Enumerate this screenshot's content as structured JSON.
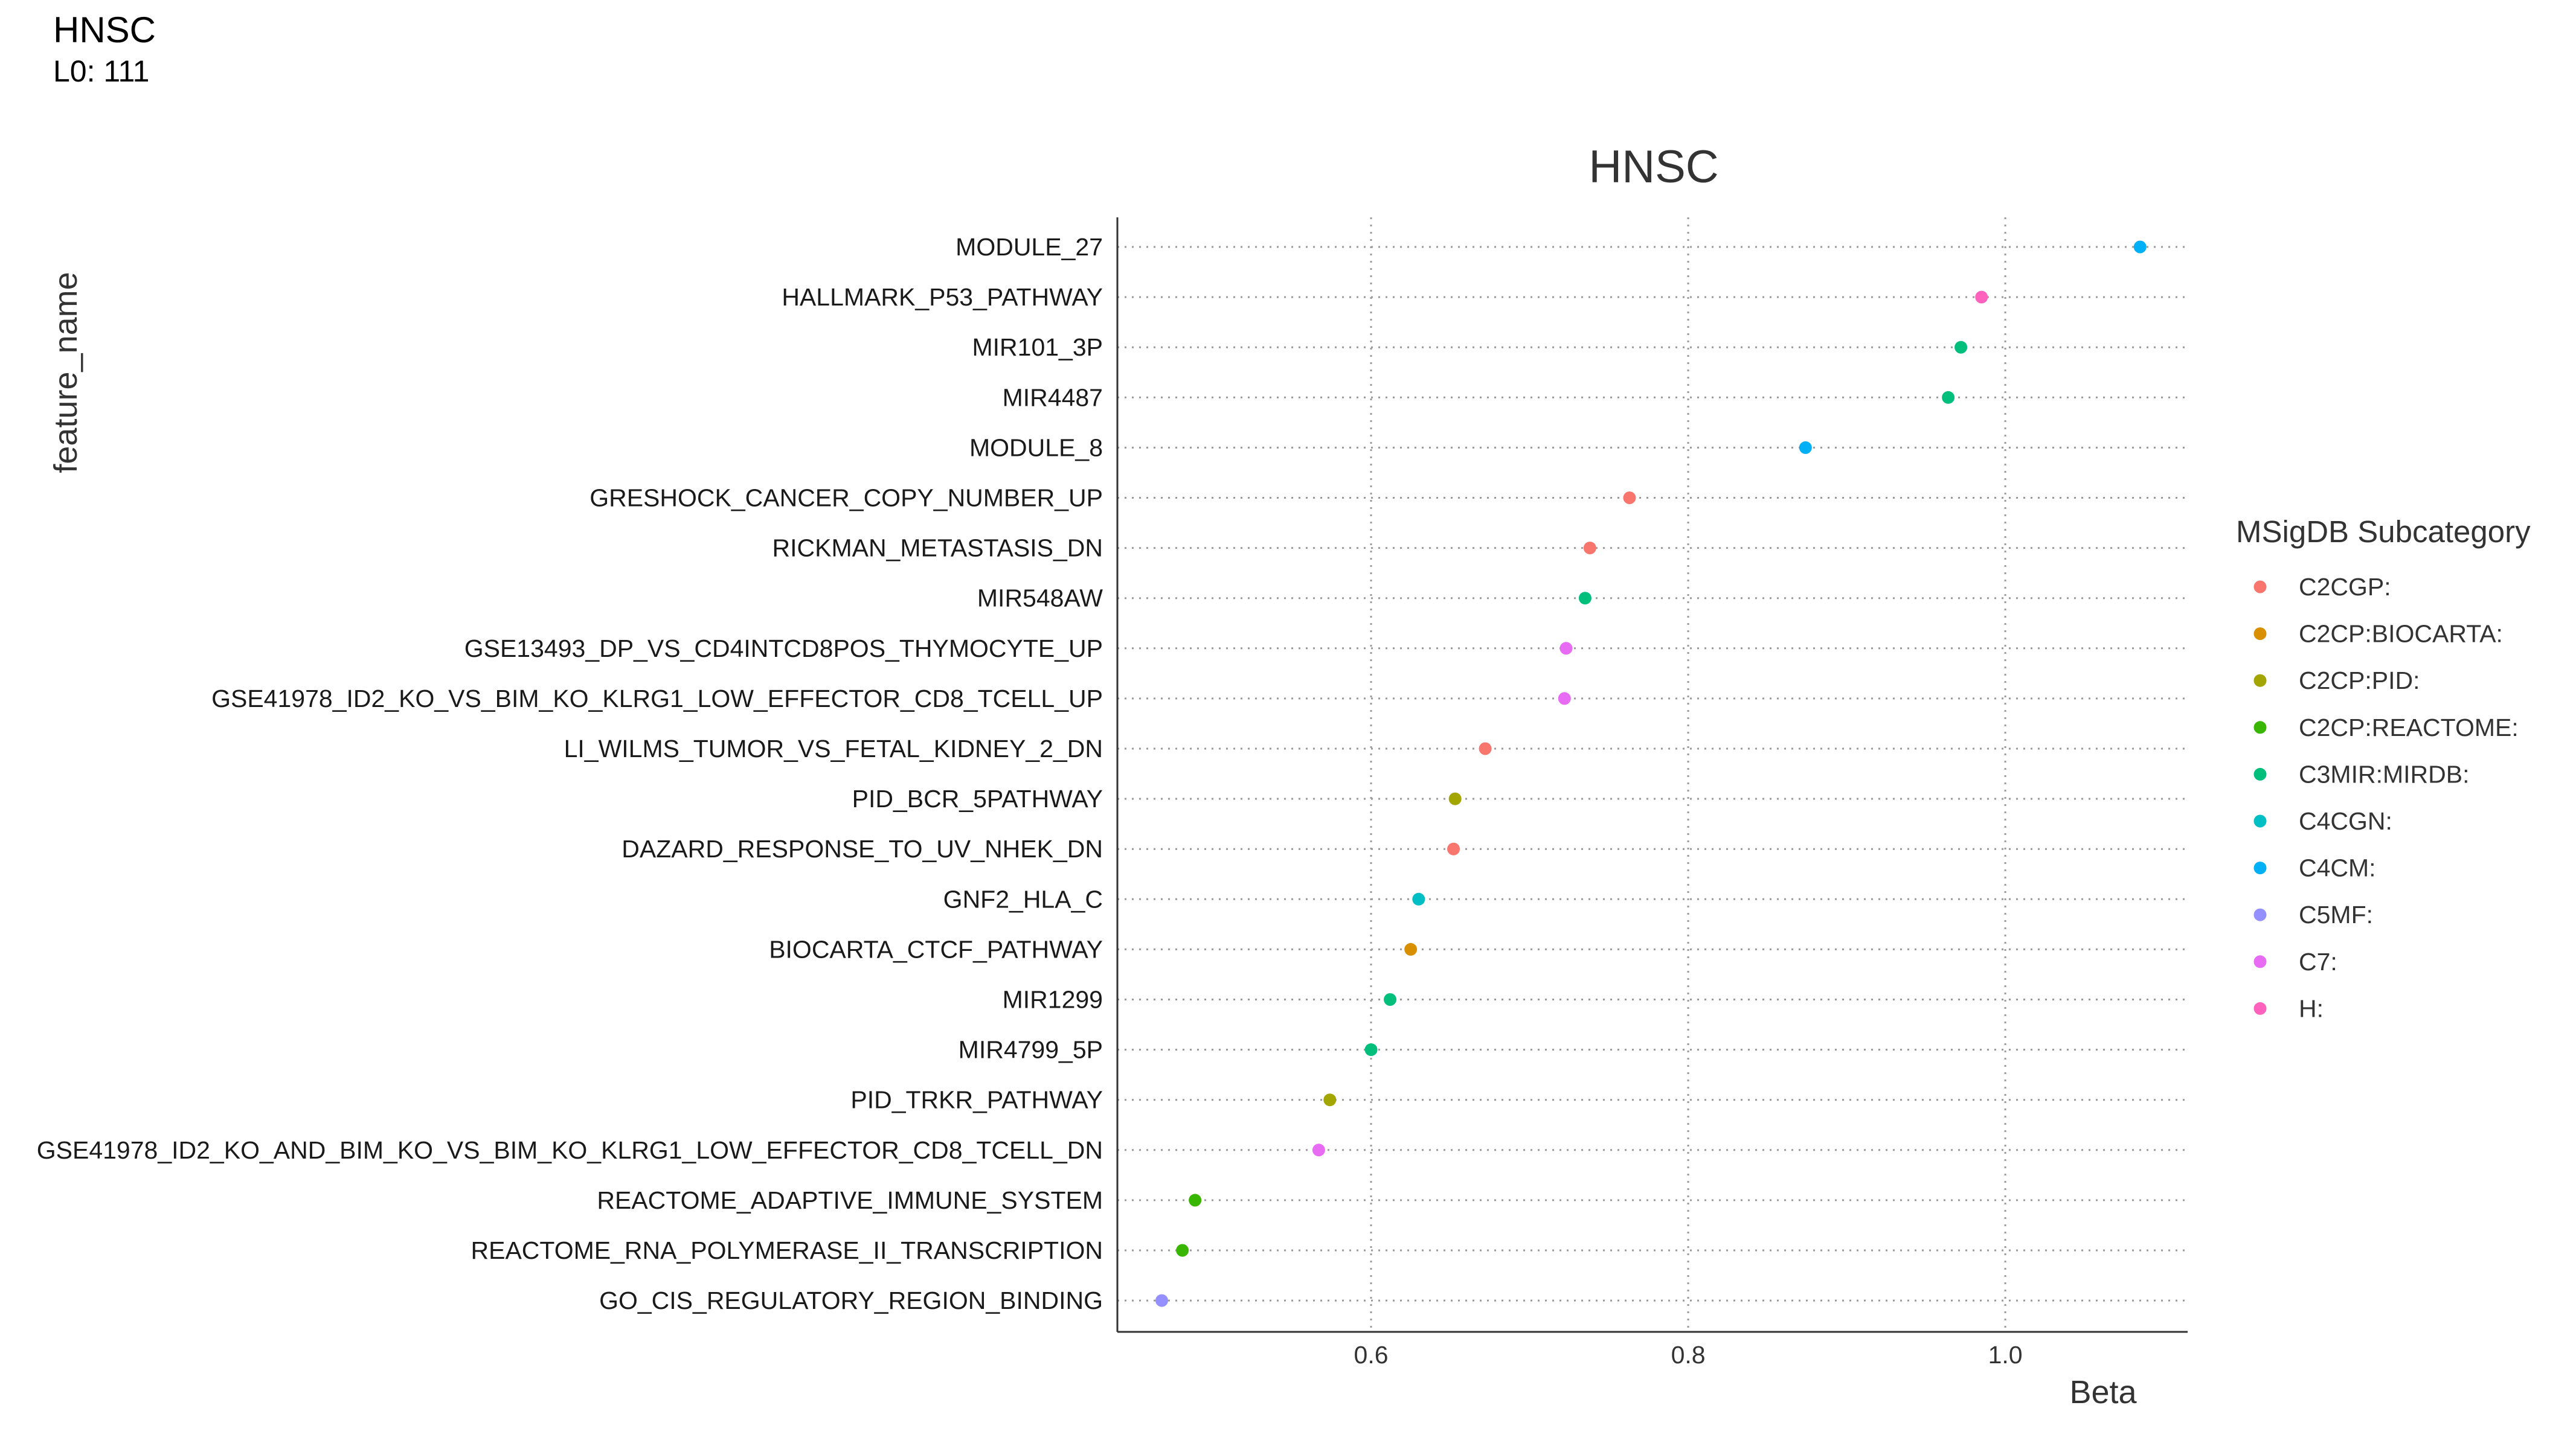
{
  "header": {
    "title": "HNSC",
    "subtitle": "L0: 111"
  },
  "chart_data": {
    "type": "scatter",
    "title": "HNSC",
    "xlabel": "Beta",
    "ylabel": "feature_name",
    "xlim": [
      0.44,
      1.115
    ],
    "xticks": [
      0.6,
      0.8,
      1.0
    ],
    "xtick_labels": [
      "0.6",
      "0.8",
      "1.0"
    ],
    "grid": true,
    "legend": {
      "title": "MSigDB Subcategory",
      "position": "right"
    },
    "categories": [
      {
        "name": "C2CGP:",
        "color": "#F8766D"
      },
      {
        "name": "C2CP:BIOCARTA:",
        "color": "#D89000"
      },
      {
        "name": "C2CP:PID:",
        "color": "#A3A500"
      },
      {
        "name": "C2CP:REACTOME:",
        "color": "#39B600"
      },
      {
        "name": "C3MIR:MIRDB:",
        "color": "#00BF7D"
      },
      {
        "name": "C4CGN:",
        "color": "#00BFC4"
      },
      {
        "name": "C4CM:",
        "color": "#00B0F6"
      },
      {
        "name": "C5MF:",
        "color": "#9590FF"
      },
      {
        "name": "C7:",
        "color": "#E76BF3"
      },
      {
        "name": "H:",
        "color": "#FF62BC"
      }
    ],
    "points": [
      {
        "feature": "MODULE_27",
        "beta": 1.085,
        "category": "C4CM:"
      },
      {
        "feature": "HALLMARK_P53_PATHWAY",
        "beta": 0.985,
        "category": "H:"
      },
      {
        "feature": "MIR101_3P",
        "beta": 0.972,
        "category": "C3MIR:MIRDB:"
      },
      {
        "feature": "MIR4487",
        "beta": 0.964,
        "category": "C3MIR:MIRDB:"
      },
      {
        "feature": "MODULE_8",
        "beta": 0.874,
        "category": "C4CM:"
      },
      {
        "feature": "GRESHOCK_CANCER_COPY_NUMBER_UP",
        "beta": 0.763,
        "category": "C2CGP:"
      },
      {
        "feature": "RICKMAN_METASTASIS_DN",
        "beta": 0.738,
        "category": "C2CGP:"
      },
      {
        "feature": "MIR548AW",
        "beta": 0.735,
        "category": "C3MIR:MIRDB:"
      },
      {
        "feature": "GSE13493_DP_VS_CD4INTCD8POS_THYMOCYTE_UP",
        "beta": 0.723,
        "category": "C7:"
      },
      {
        "feature": "GSE41978_ID2_KO_VS_BIM_KO_KLRG1_LOW_EFFECTOR_CD8_TCELL_UP",
        "beta": 0.722,
        "category": "C7:"
      },
      {
        "feature": "LI_WILMS_TUMOR_VS_FETAL_KIDNEY_2_DN",
        "beta": 0.672,
        "category": "C2CGP:"
      },
      {
        "feature": "PID_BCR_5PATHWAY",
        "beta": 0.653,
        "category": "C2CP:PID:"
      },
      {
        "feature": "DAZARD_RESPONSE_TO_UV_NHEK_DN",
        "beta": 0.652,
        "category": "C2CGP:"
      },
      {
        "feature": "GNF2_HLA_C",
        "beta": 0.63,
        "category": "C4CGN:"
      },
      {
        "feature": "BIOCARTA_CTCF_PATHWAY",
        "beta": 0.625,
        "category": "C2CP:BIOCARTA:"
      },
      {
        "feature": "MIR1299",
        "beta": 0.612,
        "category": "C3MIR:MIRDB:"
      },
      {
        "feature": "MIR4799_5P",
        "beta": 0.6,
        "category": "C3MIR:MIRDB:"
      },
      {
        "feature": "PID_TRKR_PATHWAY",
        "beta": 0.574,
        "category": "C2CP:PID:"
      },
      {
        "feature": "GSE41978_ID2_KO_AND_BIM_KO_VS_BIM_KO_KLRG1_LOW_EFFECTOR_CD8_TCELL_DN",
        "beta": 0.567,
        "category": "C7:"
      },
      {
        "feature": "REACTOME_ADAPTIVE_IMMUNE_SYSTEM",
        "beta": 0.489,
        "category": "C2CP:REACTOME:"
      },
      {
        "feature": "REACTOME_RNA_POLYMERASE_II_TRANSCRIPTION",
        "beta": 0.481,
        "category": "C2CP:REACTOME:"
      },
      {
        "feature": "GO_CIS_REGULATORY_REGION_BINDING",
        "beta": 0.468,
        "category": "C5MF:"
      }
    ]
  }
}
